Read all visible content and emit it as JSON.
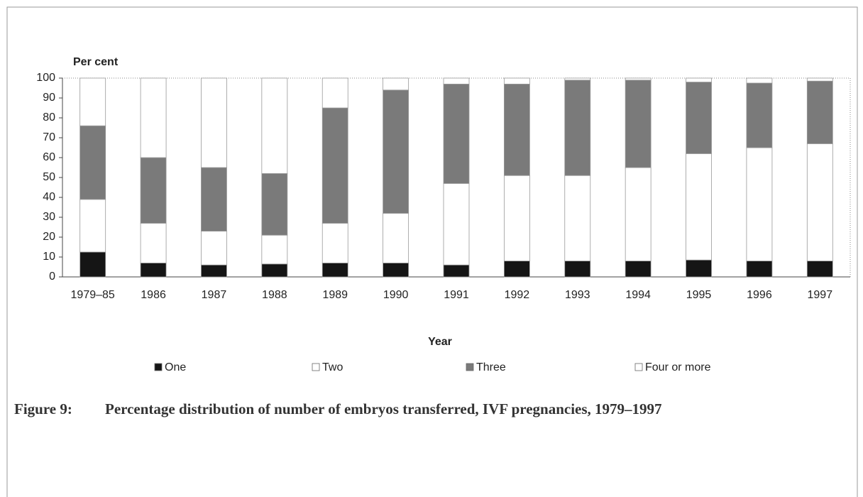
{
  "chart_data": {
    "type": "stacked_bar",
    "ylabel": "Per cent",
    "xlabel": "Year",
    "caption_label": "Figure 9:",
    "caption": "Percentage distribution of number of embryos transferred, IVF pregnancies, 1979–1997",
    "categories": [
      "1979–85",
      "1986",
      "1987",
      "1988",
      "1989",
      "1990",
      "1991",
      "1992",
      "1993",
      "1994",
      "1995",
      "1996",
      "1997"
    ],
    "series": [
      {
        "name": "One",
        "color": "#151515",
        "values": [
          12.5,
          7,
          6,
          6.5,
          7,
          7,
          6,
          8,
          8,
          8,
          8.5,
          8,
          8
        ]
      },
      {
        "name": "Two",
        "color": "#ffffff",
        "values": [
          26.5,
          20,
          17,
          14.5,
          20,
          25,
          41,
          43,
          43,
          47,
          53.5,
          57,
          59
        ]
      },
      {
        "name": "Three",
        "color": "#7a7a7a",
        "values": [
          37,
          33,
          32,
          31,
          58,
          62,
          50,
          46,
          48,
          44,
          36,
          32.5,
          31.5
        ]
      },
      {
        "name": "Four or more",
        "color": "#ffffff",
        "values": [
          24,
          40,
          45,
          48,
          15,
          6,
          3,
          3,
          1,
          1,
          2,
          2.5,
          1.5
        ]
      }
    ],
    "ylim": [
      0,
      100
    ],
    "yticks": [
      0,
      10,
      20,
      30,
      40,
      50,
      60,
      70,
      80,
      90,
      100
    ]
  }
}
